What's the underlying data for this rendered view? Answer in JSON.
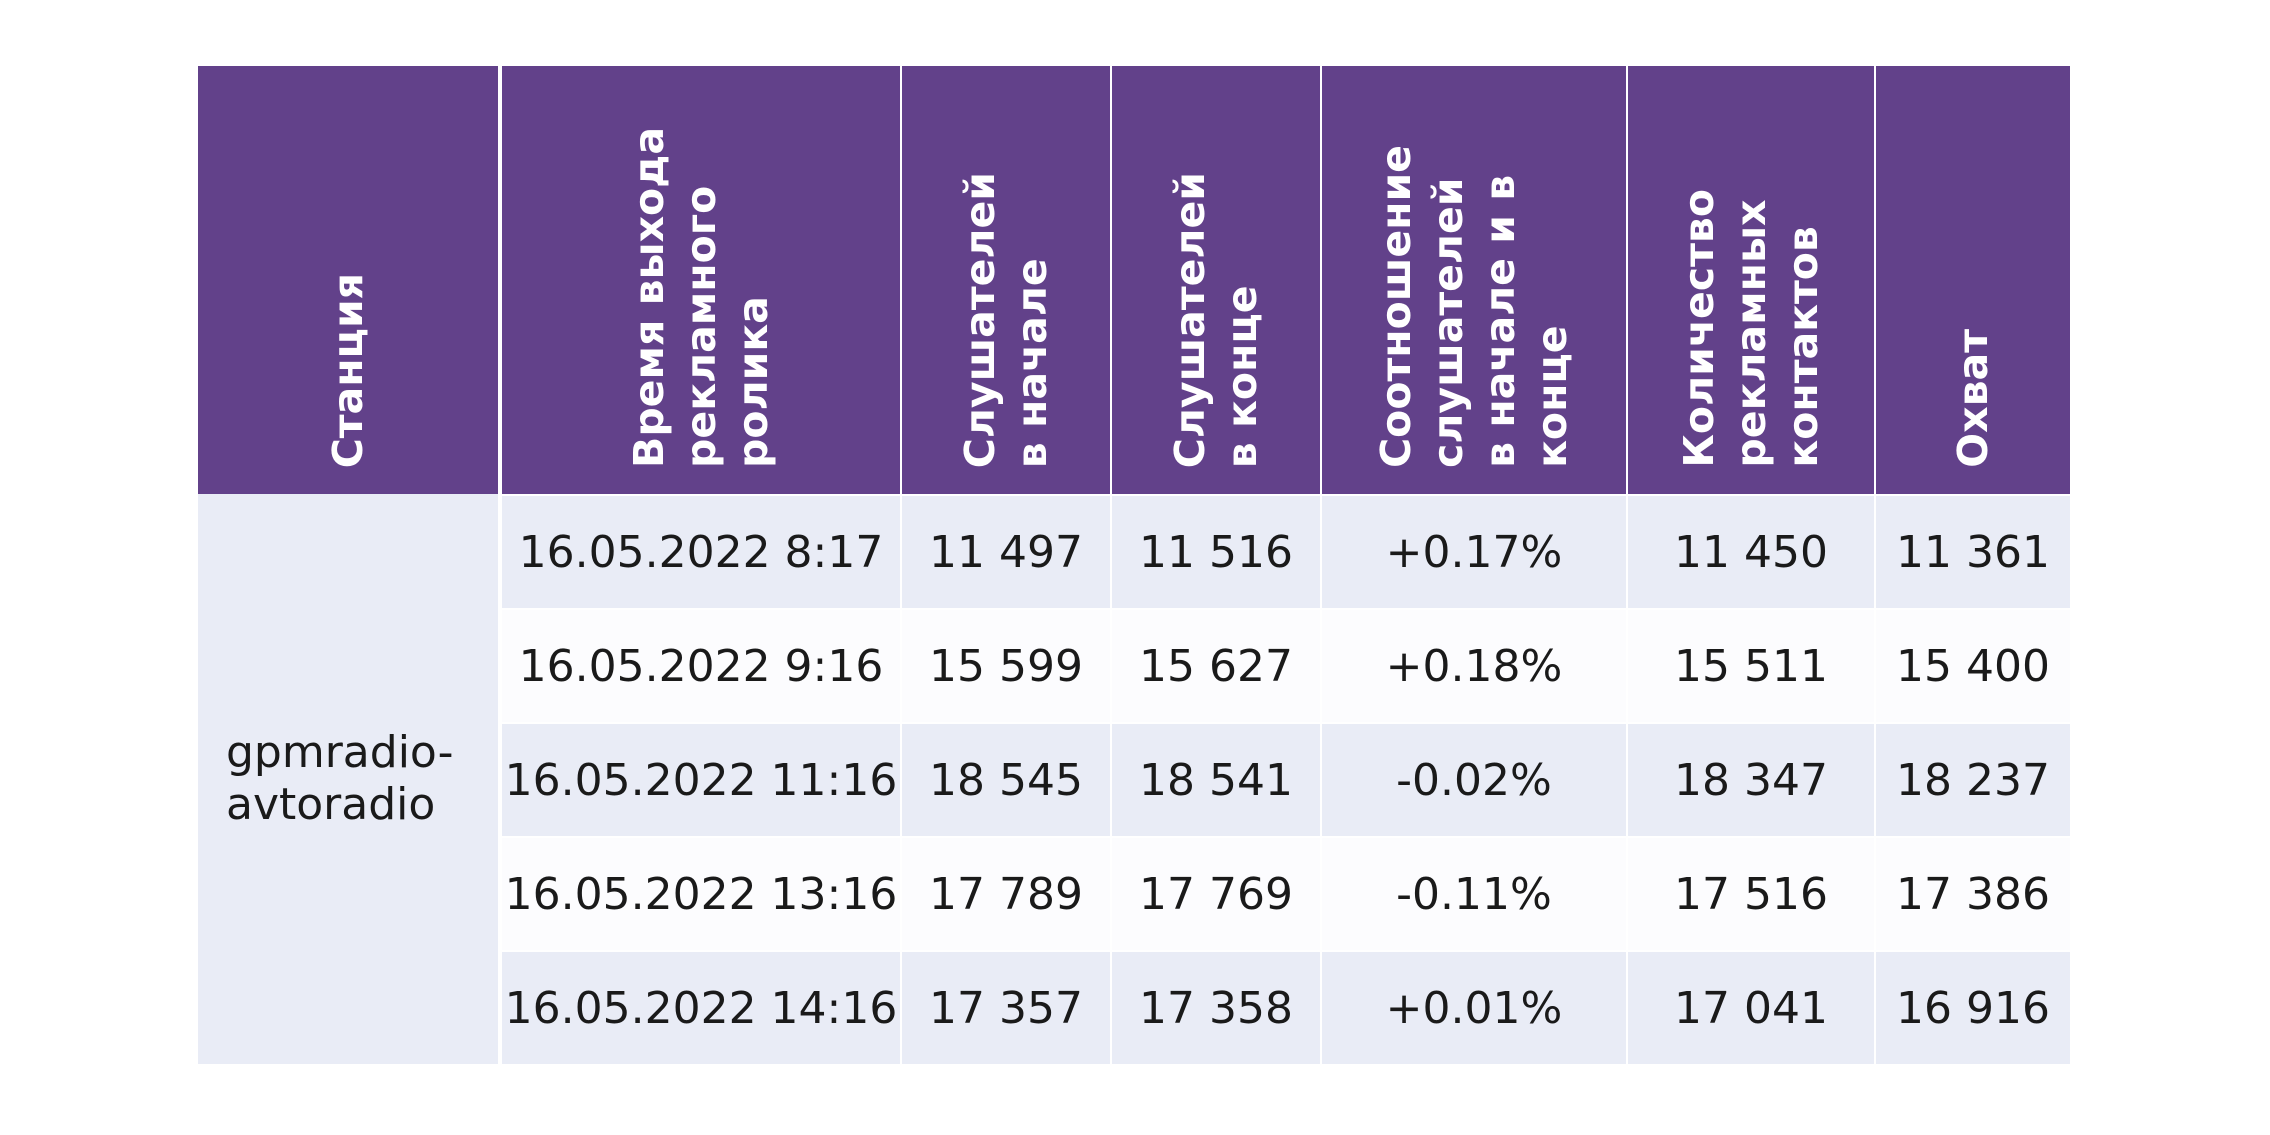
{
  "table": {
    "headers": [
      "Станция",
      "Время выхода\nрекламного\nролика",
      "Слушателей\nв начале",
      "Слушателей\nв конце",
      "Соотношение\nслушателей\nв начале и в\nконце",
      "Количество\nрекламных\nконтактов",
      "Охват"
    ],
    "station": "gpmradio-\navtoradio",
    "rows": [
      {
        "time": "16.05.2022 8:17",
        "start": "11 497",
        "end": "11 516",
        "ratio": "+0.17%",
        "contacts": "11 450",
        "reach": "11 361"
      },
      {
        "time": "16.05.2022 9:16",
        "start": "15 599",
        "end": "15 627",
        "ratio": "+0.18%",
        "contacts": "15 511",
        "reach": "15 400"
      },
      {
        "time": "16.05.2022 11:16",
        "start": "18 545",
        "end": "18 541",
        "ratio": "-0.02%",
        "contacts": "18 347",
        "reach": "18 237"
      },
      {
        "time": "16.05.2022 13:16",
        "start": "17 789",
        "end": "17 769",
        "ratio": "-0.11%",
        "contacts": "17 516",
        "reach": "17 386"
      },
      {
        "time": "16.05.2022 14:16",
        "start": "17 357",
        "end": "17 358",
        "ratio": "+0.01%",
        "contacts": "17 041",
        "reach": "16 916"
      }
    ]
  },
  "colors": {
    "header_bg": "#62418a",
    "header_text": "#ffffff",
    "row_shade": "#e9ecf6",
    "row_plain": "#fcfcfe"
  }
}
